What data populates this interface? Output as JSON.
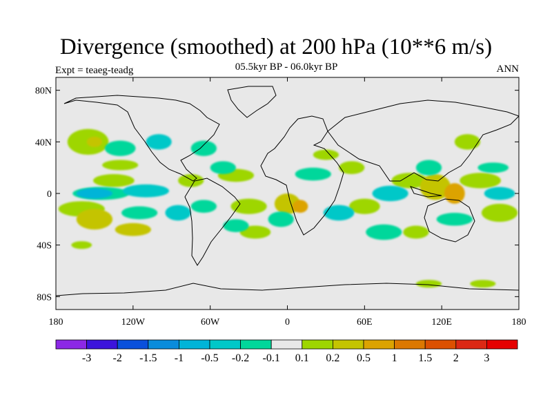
{
  "title": "Divergence (smoothed) at 200 hPa (10**6 m/s)",
  "subtitle": "05.5kyr BP - 06.0kyr BP",
  "left_label": "Expt = teaeg-teadg",
  "right_label": "ANN",
  "map": {
    "projection": "cylindrical equidistant",
    "lon_range": [
      -180,
      180
    ],
    "lat_range": [
      -90,
      90
    ],
    "land_color": "#e8e8e8",
    "y_ticks": [
      {
        "lat": 80,
        "label": "80N"
      },
      {
        "lat": 40,
        "label": "40N"
      },
      {
        "lat": 0,
        "label": "0"
      },
      {
        "lat": -40,
        "label": "40S"
      },
      {
        "lat": -80,
        "label": "80S"
      }
    ],
    "x_ticks": [
      {
        "lon": -180,
        "label": "180"
      },
      {
        "lon": -120,
        "label": "120W"
      },
      {
        "lon": -60,
        "label": "60W"
      },
      {
        "lon": 0,
        "label": "0"
      },
      {
        "lon": 60,
        "label": "60E"
      },
      {
        "lon": 120,
        "label": "120E"
      },
      {
        "lon": 180,
        "label": "180"
      }
    ],
    "divergence_regions": [
      {
        "lon": -155,
        "lat": 40,
        "rx": 16,
        "ry": 10,
        "level": "0.2",
        "color": "#9ed600"
      },
      {
        "lon": -150,
        "lat": 40,
        "rx": 6,
        "ry": 4,
        "level": "0.5",
        "color": "#c4c400"
      },
      {
        "lon": -130,
        "lat": 22,
        "rx": 14,
        "ry": 4,
        "level": "0.2",
        "color": "#9ed600"
      },
      {
        "lon": -135,
        "lat": 10,
        "rx": 16,
        "ry": 5,
        "level": "0.2",
        "color": "#9ed600"
      },
      {
        "lon": -160,
        "lat": -12,
        "rx": 18,
        "ry": 6,
        "level": "0.2",
        "color": "#9ed600"
      },
      {
        "lon": -150,
        "lat": -20,
        "rx": 14,
        "ry": 8,
        "level": "0.5",
        "color": "#c4c400"
      },
      {
        "lon": -120,
        "lat": -28,
        "rx": 14,
        "ry": 5,
        "level": "0.5",
        "color": "#c4c400"
      },
      {
        "lon": -75,
        "lat": 10,
        "rx": 10,
        "ry": 5,
        "level": "0.2",
        "color": "#9ed600"
      },
      {
        "lon": -40,
        "lat": 14,
        "rx": 14,
        "ry": 5,
        "level": "0.2",
        "color": "#9ed600"
      },
      {
        "lon": 0,
        "lat": -8,
        "rx": 10,
        "ry": 8,
        "level": "0.5",
        "color": "#c4c400"
      },
      {
        "lon": 10,
        "lat": -10,
        "rx": 6,
        "ry": 5,
        "level": "1",
        "color": "#dca300"
      },
      {
        "lon": -30,
        "lat": -10,
        "rx": 14,
        "ry": 6,
        "level": "0.2",
        "color": "#9ed600"
      },
      {
        "lon": -25,
        "lat": -30,
        "rx": 12,
        "ry": 5,
        "level": "0.2",
        "color": "#9ed600"
      },
      {
        "lon": 30,
        "lat": 30,
        "rx": 10,
        "ry": 4,
        "level": "0.2",
        "color": "#9ed600"
      },
      {
        "lon": 50,
        "lat": 20,
        "rx": 10,
        "ry": 5,
        "level": "0.2",
        "color": "#9ed600"
      },
      {
        "lon": 60,
        "lat": -10,
        "rx": 12,
        "ry": 6,
        "level": "0.2",
        "color": "#9ed600"
      },
      {
        "lon": 95,
        "lat": 10,
        "rx": 14,
        "ry": 6,
        "level": "0.2",
        "color": "#9ed600"
      },
      {
        "lon": 115,
        "lat": 5,
        "rx": 12,
        "ry": 10,
        "level": "0.5",
        "color": "#c4c400"
      },
      {
        "lon": 130,
        "lat": 0,
        "rx": 8,
        "ry": 8,
        "level": "1",
        "color": "#dca300"
      },
      {
        "lon": 150,
        "lat": 10,
        "rx": 16,
        "ry": 6,
        "level": "0.2",
        "color": "#9ed600"
      },
      {
        "lon": 140,
        "lat": 40,
        "rx": 10,
        "ry": 6,
        "level": "0.2",
        "color": "#9ed600"
      },
      {
        "lon": 100,
        "lat": -30,
        "rx": 10,
        "ry": 5,
        "level": "0.2",
        "color": "#9ed600"
      },
      {
        "lon": 165,
        "lat": -15,
        "rx": 14,
        "ry": 7,
        "level": "0.2",
        "color": "#9ed600"
      },
      {
        "lon": 110,
        "lat": -70,
        "rx": 10,
        "ry": 3,
        "level": "0.2",
        "color": "#9ed600"
      },
      {
        "lon": 152,
        "lat": -70,
        "rx": 10,
        "ry": 3,
        "level": "0.2",
        "color": "#9ed600"
      },
      {
        "lon": -145,
        "lat": 0,
        "rx": 22,
        "ry": 5,
        "level": "-0.1",
        "color": "#00d79b"
      },
      {
        "lon": -110,
        "lat": 2,
        "rx": 18,
        "ry": 5,
        "level": "-0.2",
        "color": "#00c8c8"
      },
      {
        "lon": -130,
        "lat": 35,
        "rx": 12,
        "ry": 6,
        "level": "-0.1",
        "color": "#00d79b"
      },
      {
        "lon": -100,
        "lat": 40,
        "rx": 10,
        "ry": 6,
        "level": "-0.2",
        "color": "#00c8c8"
      },
      {
        "lon": -65,
        "lat": 35,
        "rx": 10,
        "ry": 6,
        "level": "-0.1",
        "color": "#00d79b"
      },
      {
        "lon": -50,
        "lat": 20,
        "rx": 10,
        "ry": 5,
        "level": "-0.1",
        "color": "#00d79b"
      },
      {
        "lon": -115,
        "lat": -15,
        "rx": 14,
        "ry": 5,
        "level": "-0.1",
        "color": "#00d79b"
      },
      {
        "lon": -85,
        "lat": -15,
        "rx": 10,
        "ry": 6,
        "level": "-0.2",
        "color": "#00c8c8"
      },
      {
        "lon": -150,
        "lat": 0,
        "rx": 14,
        "ry": 4,
        "level": "-0.5",
        "color": "#00b4d8"
      },
      {
        "lon": -65,
        "lat": -10,
        "rx": 10,
        "ry": 5,
        "level": "-0.1",
        "color": "#00d79b"
      },
      {
        "lon": -40,
        "lat": -25,
        "rx": 10,
        "ry": 5,
        "level": "-0.1",
        "color": "#00d79b"
      },
      {
        "lon": -5,
        "lat": -20,
        "rx": 10,
        "ry": 6,
        "level": "-0.1",
        "color": "#00d79b"
      },
      {
        "lon": 20,
        "lat": 15,
        "rx": 14,
        "ry": 5,
        "level": "-0.1",
        "color": "#00d79b"
      },
      {
        "lon": 40,
        "lat": -15,
        "rx": 12,
        "ry": 6,
        "level": "-0.2",
        "color": "#00c8c8"
      },
      {
        "lon": 80,
        "lat": 0,
        "rx": 14,
        "ry": 6,
        "level": "-0.2",
        "color": "#00c8c8"
      },
      {
        "lon": 75,
        "lat": -30,
        "rx": 14,
        "ry": 6,
        "level": "-0.1",
        "color": "#00d79b"
      },
      {
        "lon": 110,
        "lat": 20,
        "rx": 10,
        "ry": 6,
        "level": "-0.1",
        "color": "#00d79b"
      },
      {
        "lon": 130,
        "lat": -20,
        "rx": 14,
        "ry": 5,
        "level": "-0.1",
        "color": "#00d79b"
      },
      {
        "lon": 160,
        "lat": 20,
        "rx": 12,
        "ry": 4,
        "level": "-0.1",
        "color": "#00d79b"
      },
      {
        "lon": 165,
        "lat": 0,
        "rx": 12,
        "ry": 5,
        "level": "-0.2",
        "color": "#00c8c8"
      },
      {
        "lon": -160,
        "lat": -40,
        "rx": 8,
        "ry": 3,
        "level": "0.2",
        "color": "#9ed600"
      }
    ]
  },
  "colorbar": {
    "colors": [
      "#8c28e6",
      "#3c14dc",
      "#0a50dc",
      "#0a8cdc",
      "#00b4d8",
      "#00c8c8",
      "#00d79b",
      "#e8e8e8",
      "#9ed600",
      "#c4c400",
      "#dca300",
      "#dc7800",
      "#dc5000",
      "#dc2814",
      "#e60000"
    ],
    "labels": [
      "-3",
      "-2",
      "-1.5",
      "-1",
      "-0.5",
      "-0.2",
      "-0.1",
      "0.1",
      "0.2",
      "0.5",
      "1",
      "1.5",
      "2",
      "3"
    ]
  }
}
